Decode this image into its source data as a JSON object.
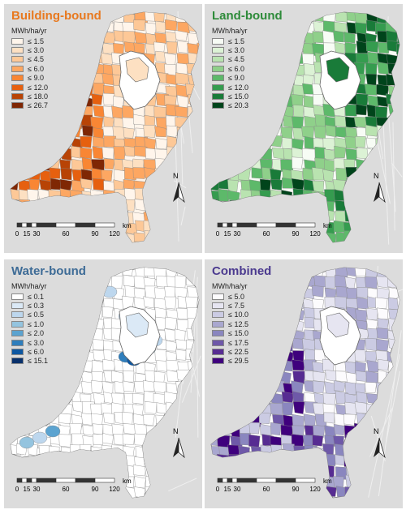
{
  "panels": [
    {
      "title": "Building-bound",
      "title_color": "#e8791f",
      "unit": "MWh/ha/yr",
      "legend": [
        {
          "label": "≤ 1.5",
          "color": "#fff5eb"
        },
        {
          "label": "≤ 3.0",
          "color": "#fde0c2"
        },
        {
          "label": "≤ 4.5",
          "color": "#fdc897"
        },
        {
          "label": "≤ 6.0",
          "color": "#fda762"
        },
        {
          "label": "≤ 9.0",
          "color": "#f98634"
        },
        {
          "label": "≤ 12.0",
          "color": "#e6600f"
        },
        {
          "label": "≤ 18.0",
          "color": "#b84305"
        },
        {
          "label": "≤ 26.7",
          "color": "#7f2704"
        }
      ]
    },
    {
      "title": "Land-bound",
      "title_color": "#2e8b3a",
      "unit": "MWh/ha/yr",
      "legend": [
        {
          "label": "≤ 1.5",
          "color": "#f7fcf5"
        },
        {
          "label": "≤ 3.0",
          "color": "#dcf2d5"
        },
        {
          "label": "≤ 4.5",
          "color": "#b9e3b0"
        },
        {
          "label": "≤ 6.0",
          "color": "#8fd08a"
        },
        {
          "label": "≤ 9.0",
          "color": "#5db96a"
        },
        {
          "label": "≤ 12.0",
          "color": "#359c4f"
        },
        {
          "label": "≤ 15.0",
          "color": "#197b39"
        },
        {
          "label": "≤ 20.3",
          "color": "#00441b"
        }
      ]
    },
    {
      "title": "Water-bound",
      "title_color": "#3d6b96",
      "unit": "MWh/ha/yr",
      "legend": [
        {
          "label": "≤ 0.1",
          "color": "#ffffff"
        },
        {
          "label": "≤ 0.3",
          "color": "#dbe9f6"
        },
        {
          "label": "≤ 0.5",
          "color": "#bdd7ee"
        },
        {
          "label": "≤ 1.0",
          "color": "#94c4df"
        },
        {
          "label": "≤ 2.0",
          "color": "#5ba3d0"
        },
        {
          "label": "≤ 3.0",
          "color": "#2f7ebc"
        },
        {
          "label": "≤ 6.0",
          "color": "#0d57a1"
        },
        {
          "label": "≤ 15.1",
          "color": "#08306b"
        }
      ]
    },
    {
      "title": "Combined",
      "title_color": "#4b3a8f",
      "unit": "MWh/ha/yr",
      "legend": [
        {
          "label": "≤ 5.0",
          "color": "#fcfbfd"
        },
        {
          "label": "≤ 7.5",
          "color": "#e6e5f1"
        },
        {
          "label": "≤ 10.0",
          "color": "#cbcbe3"
        },
        {
          "label": "≤ 12.5",
          "color": "#a9a7cf"
        },
        {
          "label": "≤ 15.0",
          "color": "#8a86bf"
        },
        {
          "label": "≤ 17.5",
          "color": "#6e58a8"
        },
        {
          "label": "≤ 22.5",
          "color": "#572c92"
        },
        {
          "label": "≤ 29.5",
          "color": "#3f007d"
        }
      ]
    }
  ],
  "scale": {
    "unit": "km",
    "ticks": [
      "0",
      "15",
      "30",
      "60",
      "90",
      "120"
    ]
  },
  "north_label": "N"
}
